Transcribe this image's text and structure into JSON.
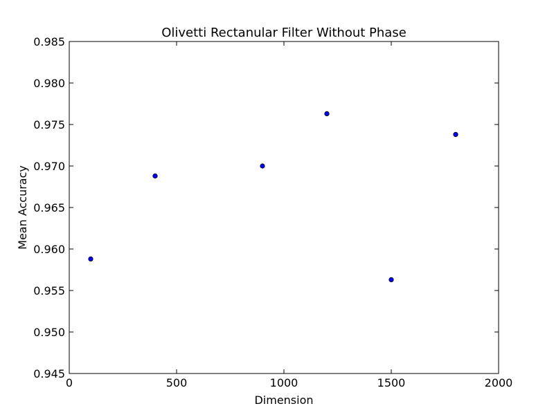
{
  "chart_data": {
    "type": "scatter",
    "title": "Olivetti Rectanular Filter Without Phase",
    "xlabel": "Dimension",
    "ylabel": "Mean Accuracy",
    "xlim": [
      0,
      2000
    ],
    "ylim": [
      0.945,
      0.985
    ],
    "xticks": [
      0,
      500,
      1000,
      1500,
      2000
    ],
    "xtick_labels": [
      "0",
      "500",
      "1000",
      "1500",
      "2000"
    ],
    "yticks": [
      0.945,
      0.95,
      0.955,
      0.96,
      0.965,
      0.97,
      0.975,
      0.98,
      0.985
    ],
    "ytick_labels": [
      "0.945",
      "0.950",
      "0.955",
      "0.960",
      "0.965",
      "0.970",
      "0.975",
      "0.980",
      "0.985"
    ],
    "grid": false,
    "legend": "none",
    "marker_color": "#0000ff",
    "marker_edge_color": "#000000",
    "points": [
      {
        "x": 100,
        "y": 0.9588
      },
      {
        "x": 400,
        "y": 0.9688
      },
      {
        "x": 900,
        "y": 0.97
      },
      {
        "x": 1200,
        "y": 0.9763
      },
      {
        "x": 1500,
        "y": 0.9563
      },
      {
        "x": 1800,
        "y": 0.9738
      }
    ]
  }
}
